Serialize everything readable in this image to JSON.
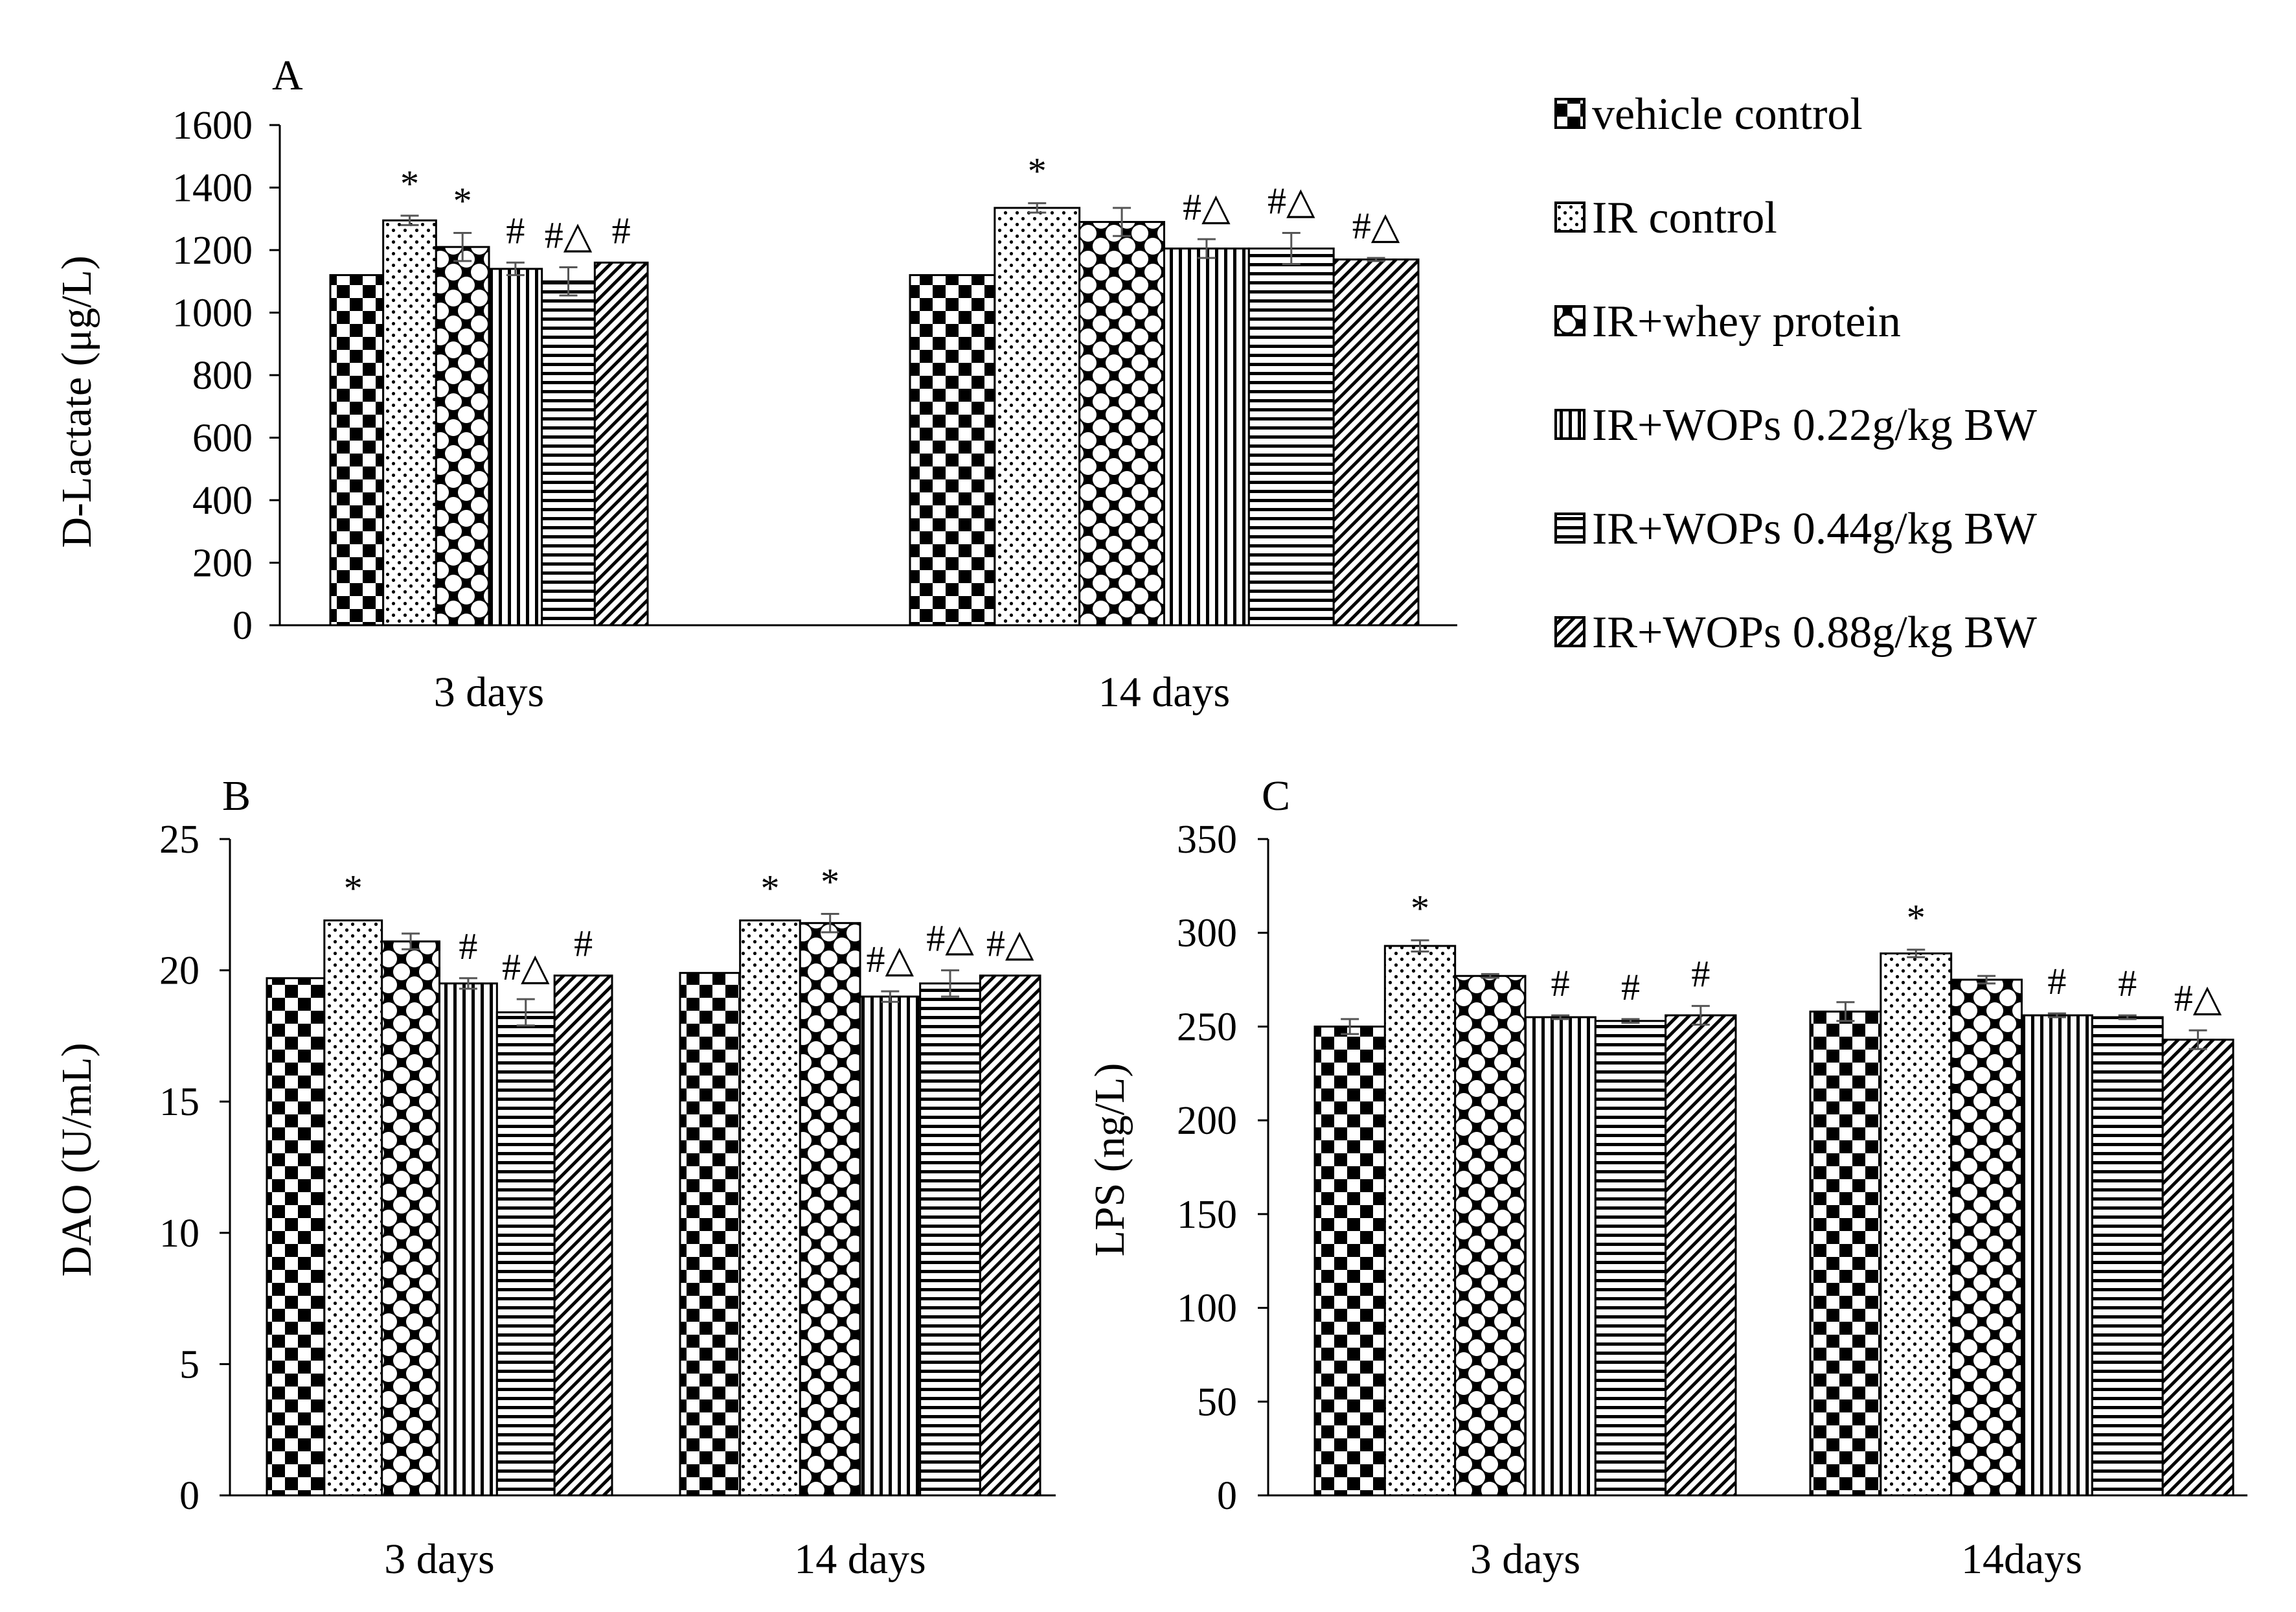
{
  "legend": [
    {
      "name": "vehicle control",
      "pattern": "checker"
    },
    {
      "name": "IR control",
      "pattern": "dots"
    },
    {
      "name": "IR+whey protein",
      "pattern": "diamond"
    },
    {
      "name": "IR+WOPs 0.22g/kg BW",
      "pattern": "vlines"
    },
    {
      "name": "IR+WOPs 0.44g/kg BW",
      "pattern": "hlines"
    },
    {
      "name": "IR+WOPs 0.88g/kg BW",
      "pattern": "diag"
    }
  ],
  "chart_data": [
    {
      "id": "A",
      "panel_label": "A",
      "type": "bar",
      "ylabel": "D-Lactate (μg/L)",
      "ylim": [
        0,
        1600
      ],
      "yticks": [
        0,
        200,
        400,
        600,
        800,
        1000,
        1200,
        1400,
        1600
      ],
      "categories": [
        "3 days",
        "14 days"
      ],
      "series": [
        {
          "name": "vehicle control",
          "values": [
            1120,
            1120
          ],
          "errors": [
            0,
            0
          ],
          "annotations": [
            "",
            ""
          ]
        },
        {
          "name": "IR control",
          "values": [
            1295,
            1335
          ],
          "errors": [
            15,
            15
          ],
          "annotations": [
            "*",
            "*"
          ]
        },
        {
          "name": "IR+whey protein",
          "values": [
            1210,
            1290
          ],
          "errors": [
            45,
            45
          ],
          "annotations": [
            "*",
            ""
          ]
        },
        {
          "name": "IR+WOPs 0.22g/kg BW",
          "values": [
            1140,
            1205
          ],
          "errors": [
            20,
            30
          ],
          "annotations": [
            "#",
            "#△"
          ]
        },
        {
          "name": "IR+WOPs 0.44g/kg BW",
          "values": [
            1100,
            1205
          ],
          "errors": [
            45,
            50
          ],
          "annotations": [
            "#△",
            "#△"
          ]
        },
        {
          "name": "IR+WOPs 0.88g/kg BW",
          "values": [
            1160,
            1170
          ],
          "errors": [
            0,
            5
          ],
          "annotations": [
            "#",
            "#△"
          ]
        }
      ]
    },
    {
      "id": "B",
      "panel_label": "B",
      "type": "bar",
      "ylabel": "DAO (U/mL)",
      "ylim": [
        0,
        25
      ],
      "yticks": [
        0,
        5,
        10,
        15,
        20,
        25
      ],
      "categories": [
        "3 days",
        "14 days"
      ],
      "series": [
        {
          "name": "vehicle control",
          "values": [
            19.7,
            19.9
          ],
          "errors": [
            0,
            0
          ],
          "annotations": [
            "",
            ""
          ]
        },
        {
          "name": "IR control",
          "values": [
            21.9,
            21.9
          ],
          "errors": [
            0,
            0
          ],
          "annotations": [
            "*",
            "*"
          ]
        },
        {
          "name": "IR+whey protein",
          "values": [
            21.1,
            21.8
          ],
          "errors": [
            0.3,
            0.35
          ],
          "annotations": [
            "",
            "*"
          ]
        },
        {
          "name": "IR+WOPs 0.22g/kg BW",
          "values": [
            19.5,
            19.0
          ],
          "errors": [
            0.2,
            0.2
          ],
          "annotations": [
            "#",
            "#△"
          ]
        },
        {
          "name": "IR+WOPs 0.44g/kg BW",
          "values": [
            18.4,
            19.5
          ],
          "errors": [
            0.5,
            0.5
          ],
          "annotations": [
            "#△",
            "#△"
          ]
        },
        {
          "name": "IR+WOPs 0.88g/kg BW",
          "values": [
            19.8,
            19.8
          ],
          "errors": [
            0,
            0
          ],
          "annotations": [
            "#",
            "#△"
          ]
        }
      ]
    },
    {
      "id": "C",
      "panel_label": "C",
      "type": "bar",
      "ylabel": "LPS (ng/L)",
      "ylim": [
        0,
        350
      ],
      "yticks": [
        0,
        50,
        100,
        150,
        200,
        250,
        300,
        350
      ],
      "categories": [
        "3 days",
        "14days"
      ],
      "series": [
        {
          "name": "vehicle control",
          "values": [
            250,
            258
          ],
          "errors": [
            4,
            5
          ],
          "annotations": [
            "",
            ""
          ]
        },
        {
          "name": "IR control",
          "values": [
            293,
            289
          ],
          "errors": [
            3,
            2
          ],
          "annotations": [
            "*",
            "*"
          ]
        },
        {
          "name": "IR+whey protein",
          "values": [
            277,
            275
          ],
          "errors": [
            1,
            2
          ],
          "annotations": [
            "",
            ""
          ]
        },
        {
          "name": "IR+WOPs 0.22g/kg BW",
          "values": [
            255,
            256
          ],
          "errors": [
            1,
            1
          ],
          "annotations": [
            "#",
            "#"
          ]
        },
        {
          "name": "IR+WOPs 0.44g/kg BW",
          "values": [
            253,
            255
          ],
          "errors": [
            1,
            1
          ],
          "annotations": [
            "#",
            "#"
          ]
        },
        {
          "name": "IR+WOPs 0.88g/kg BW",
          "values": [
            256,
            243
          ],
          "errors": [
            5,
            5
          ],
          "annotations": [
            "#",
            "#△"
          ]
        }
      ]
    }
  ]
}
